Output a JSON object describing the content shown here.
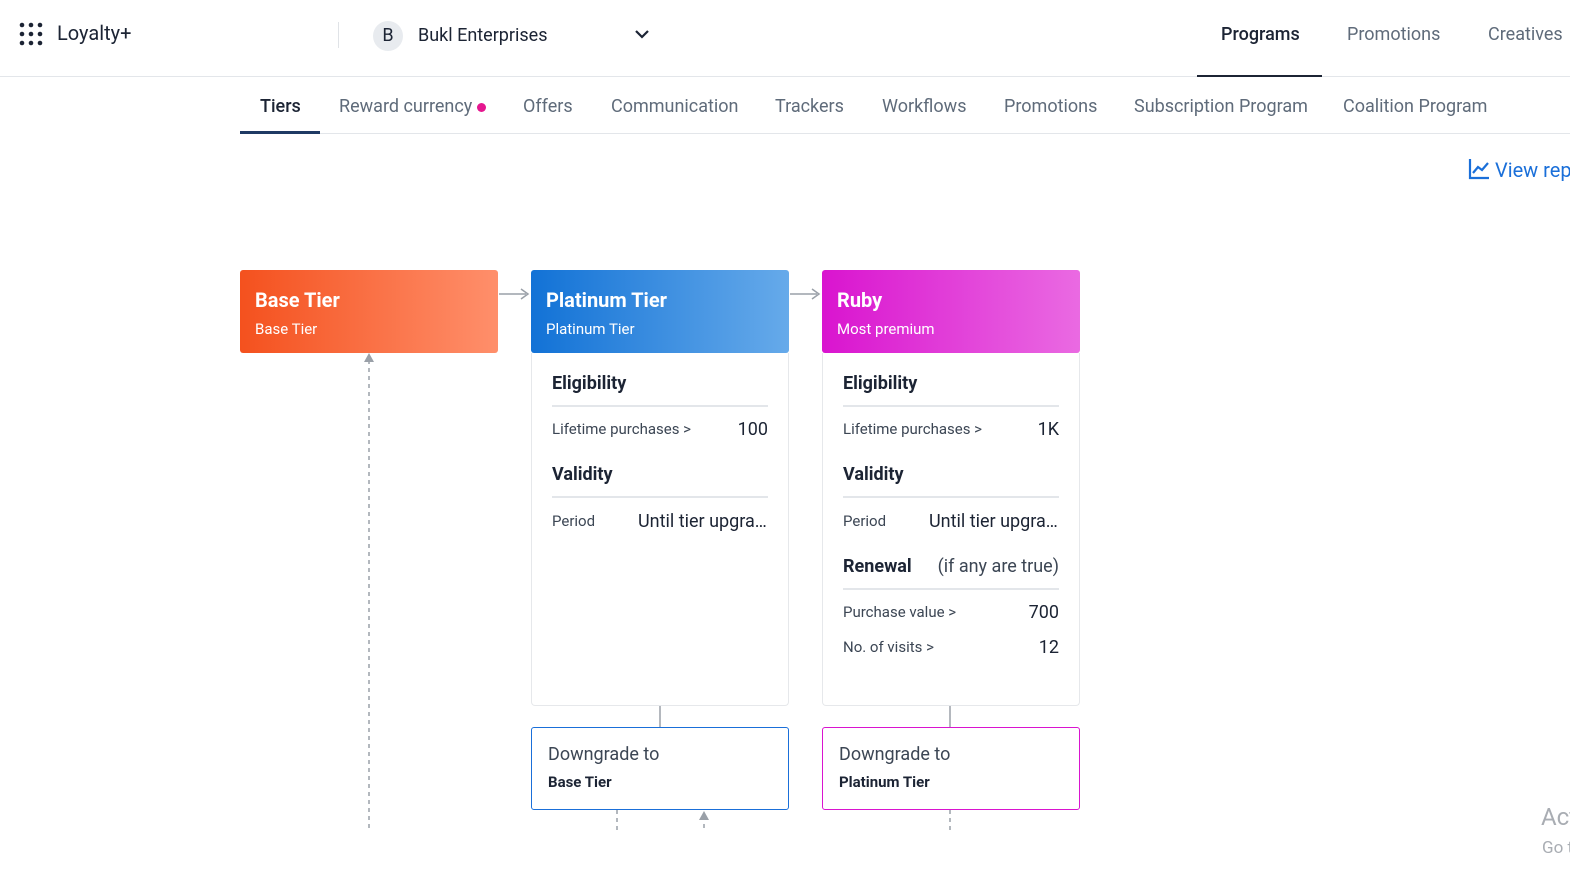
{
  "header": {
    "app_name": "Loyalty+",
    "org_initial": "B",
    "org_name": "Bukl Enterprises",
    "nav": [
      "Programs",
      "Promotions",
      "Creatives"
    ]
  },
  "tabs": [
    "Tiers",
    "Reward currency",
    "Offers",
    "Communication",
    "Trackers",
    "Workflows",
    "Promotions",
    "Subscription Program",
    "Coalition Program"
  ],
  "view_report": "View report",
  "tiers": [
    {
      "name": "Base Tier",
      "description": "Base Tier"
    },
    {
      "name": "Platinum Tier",
      "description": "Platinum Tier",
      "eligibility": {
        "heading": "Eligibility",
        "label": "Lifetime purchases >",
        "value": "100"
      },
      "validity": {
        "heading": "Validity",
        "label": "Period",
        "value": "Until tier upgrade"
      },
      "downgrade": {
        "label": "Downgrade to",
        "target": "Base Tier"
      }
    },
    {
      "name": "Ruby",
      "description": "Most premium",
      "eligibility": {
        "heading": "Eligibility",
        "label": "Lifetime purchases >",
        "value": "1K"
      },
      "validity": {
        "heading": "Validity",
        "label": "Period",
        "value": "Until tier upgrade"
      },
      "renewal": {
        "heading": "Renewal",
        "condition": "(if any are true)",
        "rows": [
          {
            "label": "Purchase value >",
            "value": "700"
          },
          {
            "label": "No. of visits >",
            "value": "12"
          }
        ]
      },
      "downgrade": {
        "label": "Downgrade to",
        "target": "Platinum Tier"
      }
    }
  ],
  "watermark": [
    "Activate Windows",
    "Go to Settings to activate Windows."
  ]
}
